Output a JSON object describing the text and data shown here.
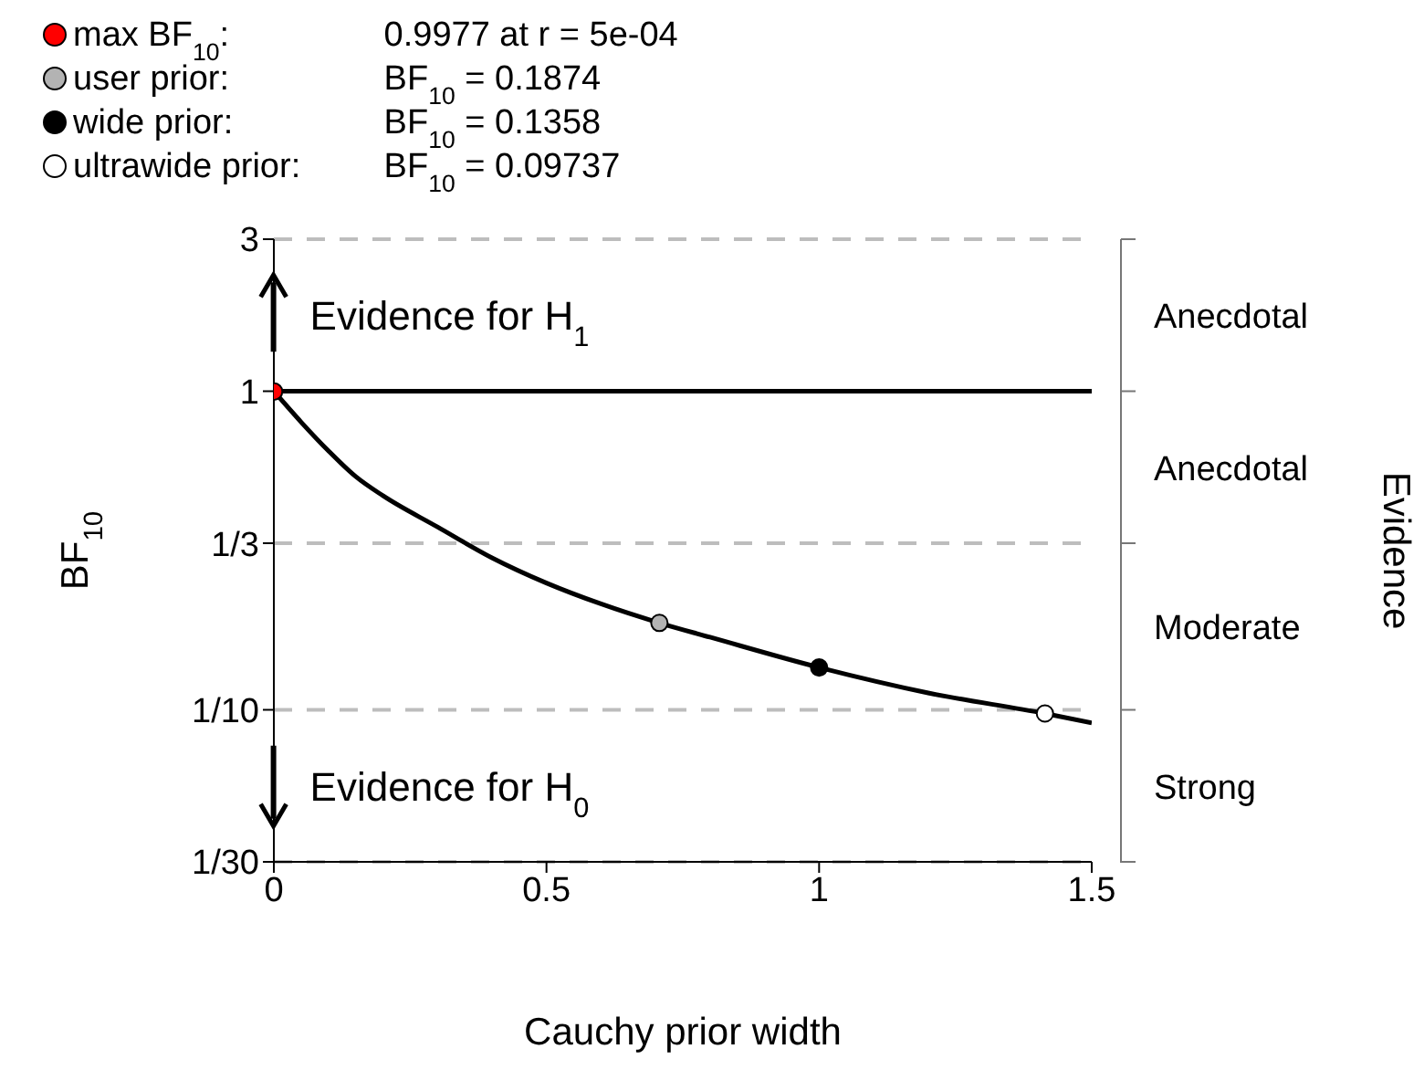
{
  "chart_data": {
    "type": "line",
    "xlabel": "Cauchy prior width",
    "ylabel": "BF$_{10}$",
    "xlim": [
      0,
      1.5
    ],
    "xticks": [
      0,
      0.5,
      1,
      1.5
    ],
    "ylim": [
      0.03333,
      3
    ],
    "yticks": [
      {
        "value": 0.03333,
        "label": "1/30"
      },
      {
        "value": 0.1,
        "label": "1/10"
      },
      {
        "value": 0.3333,
        "label": "1/3"
      },
      1,
      3
    ],
    "log": "y",
    "grid": "y",
    "ref_lines": [
      {
        "axis": "y",
        "value": 1,
        "color": "#000000"
      }
    ],
    "annotations": [
      "Evidence for H$_{1}$",
      "Evidence for H$_{0}$",
      "Strong",
      "Moderate",
      "Anecdotal",
      "Anecdotal",
      "Evidence"
    ],
    "series": [
      {
        "color": "#000000",
        "marker": "none",
        "line_style": "solid",
        "x": [
          0,
          0.05,
          0.1,
          0.15,
          0.2,
          0.3,
          0.4,
          0.5,
          0.6,
          0.7071,
          0.8,
          1,
          1.2,
          1.4142,
          1.5
        ],
        "values": [
          1,
          0.8,
          0.65,
          0.54,
          0.47,
          0.375,
          0.3,
          0.25,
          0.215,
          0.1874,
          0.169,
          0.1358,
          0.113,
          0.09737,
          0.091
        ]
      },
      {
        "type": "scatter",
        "marker": "circle",
        "name": "max BF$_{10}$: 0.9977 at r = 5e-04",
        "color": "#ff0000",
        "x": [
          0.0005
        ],
        "values": [
          0.9977
        ]
      },
      {
        "type": "scatter",
        "marker": "circle",
        "name": "user prior: BF$_{10}$ = 0.1874",
        "color": "#b3b3b3",
        "x": [
          0.7071
        ],
        "values": [
          0.1874
        ]
      },
      {
        "type": "scatter",
        "marker": "circle",
        "name": "wide prior: BF$_{10}$ = 0.1358",
        "color": "#000000",
        "x": [
          1
        ],
        "values": [
          0.1358
        ]
      },
      {
        "type": "scatter",
        "marker": "circle",
        "name": "ultrawide prior: BF$_{10}$ = 0.09737",
        "color": "#ffffff",
        "x": [
          1.4142
        ],
        "values": [
          0.09737
        ]
      }
    ]
  }
}
